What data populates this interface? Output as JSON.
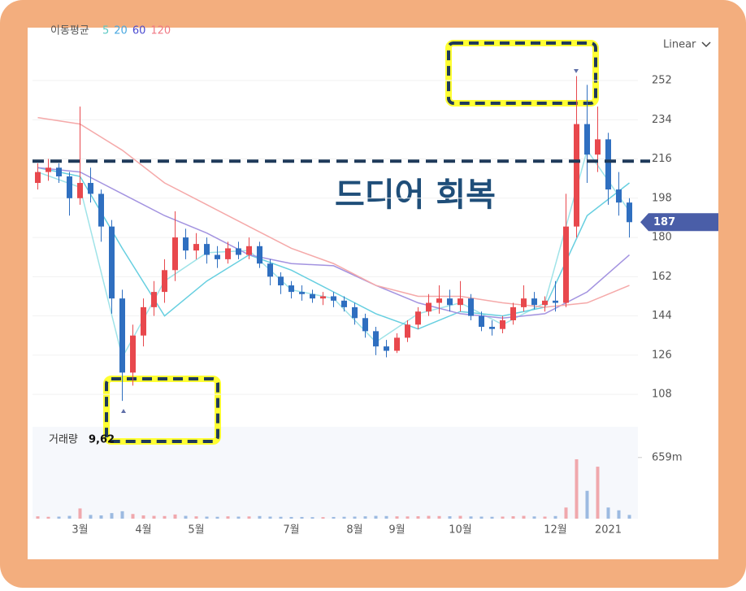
{
  "chart_data": {
    "type": "candlestick",
    "legend_title": "이동평균",
    "scale": "Linear",
    "annotation": "드디어 회복",
    "reference_line": 215,
    "last_price": 187,
    "high": [
      214,
      216,
      214,
      210,
      240,
      212,
      202,
      188,
      156,
      140,
      152,
      160,
      170,
      192,
      184,
      182,
      180,
      176,
      178,
      178,
      180,
      178,
      170,
      164,
      160,
      158,
      156,
      155,
      155,
      153,
      150,
      145,
      139,
      133,
      136,
      142,
      148,
      154,
      158,
      156,
      160,
      154,
      146,
      142,
      144,
      150,
      158,
      155,
      153,
      160,
      200,
      254,
      250,
      240,
      228,
      210,
      198
    ],
    "low": [
      202,
      206,
      205,
      190,
      195,
      196,
      178,
      145,
      105,
      112,
      130,
      144,
      150,
      160,
      170,
      170,
      168,
      166,
      168,
      170,
      170,
      166,
      158,
      154,
      152,
      151,
      150,
      149,
      148,
      146,
      140,
      134,
      126,
      125,
      127,
      132,
      138,
      144,
      145,
      146,
      146,
      142,
      137,
      135,
      136,
      140,
      146,
      147,
      146,
      146,
      148,
      180,
      205,
      210,
      195,
      190,
      180
    ],
    "ylim": [
      95,
      274
    ],
    "yticks": [
      108,
      126,
      144,
      162,
      180,
      198,
      216,
      234,
      252
    ],
    "up_color": "#e8484d",
    "down_color": "#2f6fc0",
    "categories": [
      null,
      null,
      null,
      null,
      "3월",
      null,
      null,
      null,
      null,
      null,
      "4월",
      null,
      null,
      null,
      null,
      "5월",
      null,
      null,
      null,
      null,
      null,
      null,
      null,
      null,
      "7월",
      null,
      null,
      null,
      null,
      null,
      "8월",
      null,
      null,
      null,
      "9월",
      null,
      null,
      null,
      null,
      null,
      "10월",
      null,
      null,
      null,
      null,
      null,
      null,
      null,
      null,
      "12월",
      null,
      null,
      null,
      null,
      "2021",
      null,
      null
    ],
    "open": [
      205,
      210,
      212,
      208,
      198,
      205,
      200,
      185,
      152,
      118,
      135,
      148,
      155,
      165,
      180,
      174,
      177,
      172,
      170,
      175,
      172,
      176,
      168,
      162,
      158,
      155,
      154,
      152,
      153,
      151,
      148,
      143,
      137,
      130,
      128,
      134,
      140,
      146,
      150,
      152,
      149,
      152,
      144,
      139,
      138,
      142,
      148,
      152,
      149,
      151,
      150,
      185,
      232,
      218,
      225,
      202,
      196
    ],
    "close": [
      210,
      212,
      208,
      198,
      205,
      200,
      185,
      152,
      118,
      135,
      148,
      155,
      165,
      180,
      174,
      177,
      172,
      170,
      175,
      172,
      176,
      168,
      162,
      158,
      155,
      154,
      152,
      153,
      151,
      148,
      143,
      137,
      130,
      128,
      134,
      140,
      146,
      150,
      152,
      149,
      152,
      144,
      139,
      138,
      142,
      148,
      152,
      149,
      151,
      150,
      185,
      232,
      218,
      225,
      202,
      196,
      187
    ],
    "series": [
      {
        "name": "5",
        "color": "#5cc9c4",
        "line_color": "#9fe3e8",
        "x": [
          0,
          4,
          8,
          12,
          16,
          20,
          24,
          28,
          32,
          36,
          40,
          44,
          48,
          52,
          56
        ],
        "values": [
          210,
          203,
          125,
          160,
          173,
          174,
          156,
          152,
          132,
          145,
          150,
          140,
          150,
          220,
          192
        ]
      },
      {
        "name": "20",
        "color": "#4aa8e0",
        "line_color": "#67cfe0",
        "x": [
          0,
          4,
          8,
          12,
          16,
          20,
          24,
          28,
          32,
          36,
          40,
          44,
          48,
          52,
          56
        ],
        "values": [
          212,
          208,
          175,
          144,
          160,
          172,
          165,
          155,
          145,
          138,
          146,
          144,
          148,
          190,
          205
        ]
      },
      {
        "name": "60",
        "color": "#4b4bd0",
        "line_color": "#a393e0",
        "x": [
          0,
          4,
          8,
          12,
          16,
          20,
          24,
          28,
          32,
          36,
          40,
          44,
          48,
          52,
          56
        ],
        "values": [
          212,
          210,
          200,
          190,
          182,
          172,
          168,
          167,
          158,
          150,
          145,
          143,
          145,
          155,
          172
        ]
      },
      {
        "name": "120",
        "color": "#f07a84",
        "line_color": "#f5a9a9",
        "x": [
          0,
          4,
          8,
          12,
          16,
          20,
          24,
          28,
          32,
          36,
          40,
          44,
          48,
          52,
          56
        ],
        "values": [
          235,
          232,
          220,
          205,
          195,
          185,
          175,
          168,
          158,
          153,
          153,
          150,
          148,
          150,
          158
        ]
      }
    ],
    "volume": {
      "label": "거래량",
      "total": "9,62",
      "ylim": [
        0,
        990
      ],
      "yticks": [
        {
          "value": 659,
          "label": "659m"
        }
      ],
      "values": [
        25,
        20,
        22,
        30,
        110,
        40,
        35,
        60,
        80,
        50,
        35,
        30,
        28,
        45,
        30,
        25,
        22,
        20,
        25,
        22,
        24,
        28,
        22,
        20,
        18,
        18,
        16,
        16,
        18,
        20,
        22,
        25,
        30,
        28,
        25,
        24,
        26,
        30,
        28,
        26,
        30,
        24,
        22,
        20,
        22,
        26,
        30,
        24,
        22,
        28,
        120,
        640,
        300,
        560,
        120,
        90,
        40
      ]
    }
  }
}
